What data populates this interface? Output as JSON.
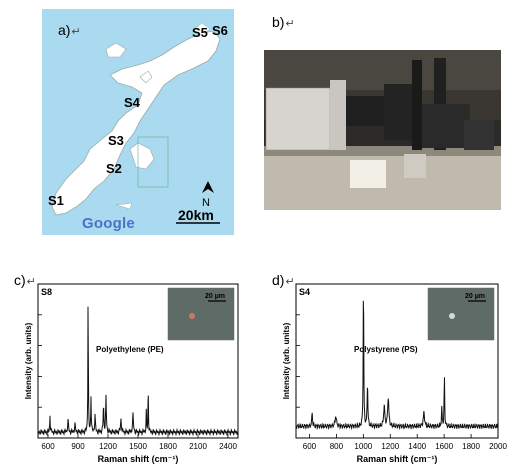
{
  "panels": {
    "a": {
      "letter": "a)",
      "mark": "↵"
    },
    "b": {
      "letter": "b)",
      "mark": "↵"
    },
    "c": {
      "letter": "c)",
      "mark": "↵"
    },
    "d": {
      "letter": "d)",
      "mark": "↵"
    }
  },
  "map": {
    "sites": [
      "S5",
      "S6",
      "S4",
      "S3",
      "S2",
      "S1"
    ],
    "north_label": "N",
    "scale_label": "20km",
    "brand": "Google",
    "colors": {
      "sea": "#a9daf0",
      "land": "#ffffff"
    }
  },
  "chart_data": [
    {
      "type": "line",
      "sample_label": "S8",
      "title": "",
      "annotation": "Polyethylene (PE)",
      "inset_scale": "20 µm",
      "xlabel": "Raman shift (cm⁻¹)",
      "ylabel": "Intensity (arb. units)",
      "xlim": [
        500,
        2500
      ],
      "ylim": [
        0,
        1.05
      ],
      "xticks": [
        600,
        900,
        1200,
        1500,
        1800,
        2100,
        2400
      ],
      "peaks": [
        {
          "x": 620,
          "height": 0.12,
          "width": 6
        },
        {
          "x": 800,
          "height": 0.08,
          "width": 10
        },
        {
          "x": 870,
          "height": 0.05,
          "width": 10
        },
        {
          "x": 1001,
          "height": 1.0,
          "width": 5
        },
        {
          "x": 1030,
          "height": 0.25,
          "width": 6
        },
        {
          "x": 1070,
          "height": 0.12,
          "width": 8
        },
        {
          "x": 1155,
          "height": 0.18,
          "width": 8
        },
        {
          "x": 1180,
          "height": 0.24,
          "width": 8
        },
        {
          "x": 1330,
          "height": 0.09,
          "width": 10
        },
        {
          "x": 1450,
          "height": 0.12,
          "width": 10
        },
        {
          "x": 1583,
          "height": 0.14,
          "width": 6
        },
        {
          "x": 1602,
          "height": 0.32,
          "width": 5
        }
      ],
      "baseline": 0.04
    },
    {
      "type": "line",
      "sample_label": "S4",
      "title": "",
      "annotation": "Polystyrene (PS)",
      "inset_scale": "20 µm",
      "xlabel": "Raman shift (cm⁻¹)",
      "ylabel": "Intensity (arb. units)",
      "xlim": [
        500,
        2000
      ],
      "ylim": [
        0,
        1.05
      ],
      "xticks": [
        600,
        800,
        1000,
        1200,
        1400,
        1600,
        1800,
        2000
      ],
      "peaks": [
        {
          "x": 620,
          "height": 0.1,
          "width": 6
        },
        {
          "x": 795,
          "height": 0.07,
          "width": 12
        },
        {
          "x": 1001,
          "height": 1.0,
          "width": 5
        },
        {
          "x": 1031,
          "height": 0.3,
          "width": 6
        },
        {
          "x": 1155,
          "height": 0.14,
          "width": 10
        },
        {
          "x": 1185,
          "height": 0.2,
          "width": 10
        },
        {
          "x": 1450,
          "height": 0.09,
          "width": 12
        },
        {
          "x": 1583,
          "height": 0.12,
          "width": 6
        },
        {
          "x": 1602,
          "height": 0.34,
          "width": 5
        }
      ],
      "baseline": 0.08
    }
  ]
}
